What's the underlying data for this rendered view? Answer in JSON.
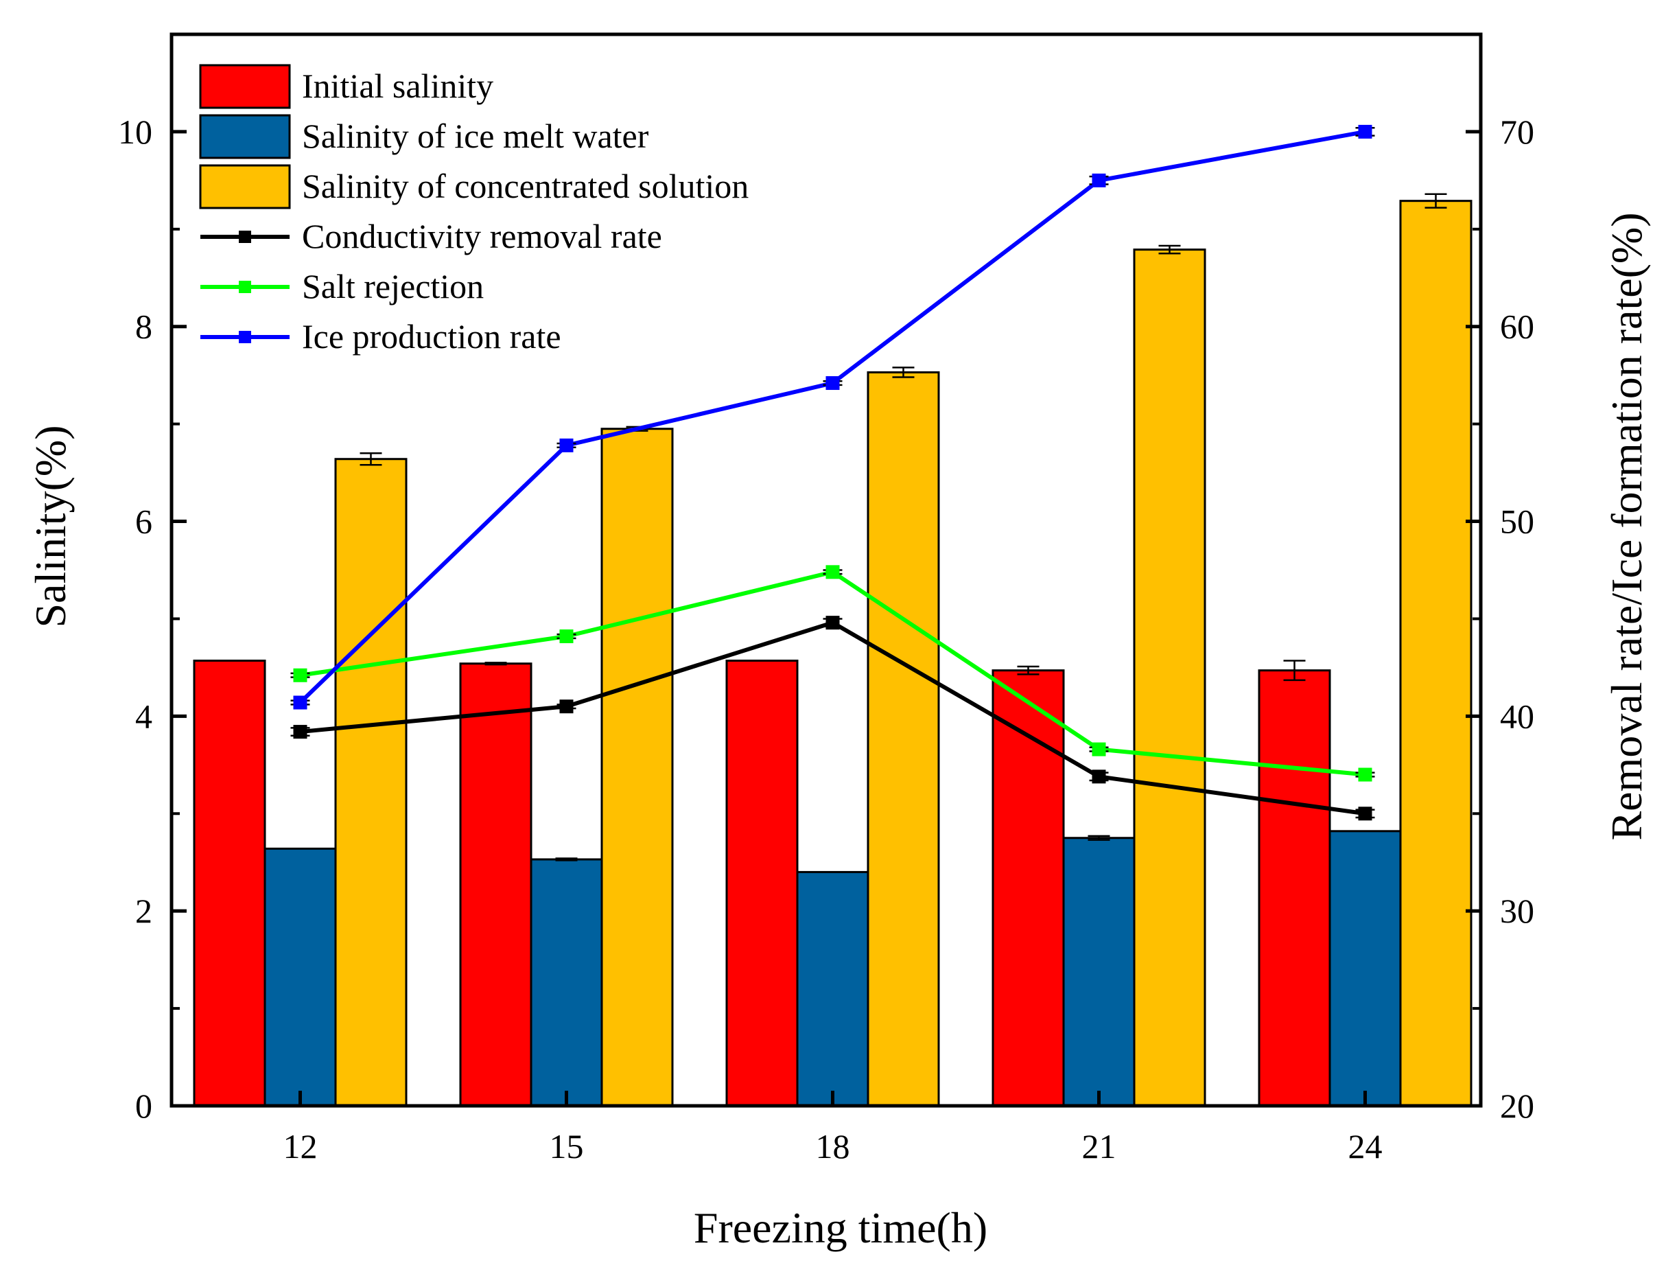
{
  "chart_data": {
    "type": "bar",
    "xlabel": "Freezing time(h)",
    "ylabel": "Salinity(%)",
    "y2label": "Removal rate/Ice formation rate(%)",
    "categories": [
      "12",
      "15",
      "18",
      "21",
      "24"
    ],
    "ylim": [
      0,
      11
    ],
    "y_ticks": [
      0,
      2,
      4,
      6,
      8,
      10
    ],
    "y2lim": [
      20,
      75
    ],
    "y2_ticks": [
      20,
      30,
      40,
      50,
      60,
      70
    ],
    "legend_position": "top-left",
    "bar_series": [
      {
        "name": "Initial salinity",
        "color": "#ff0000",
        "values": [
          4.57,
          4.54,
          4.57,
          4.47,
          4.47
        ],
        "errors": [
          0.0,
          0.01,
          0.0,
          0.04,
          0.1
        ]
      },
      {
        "name": "Salinity of ice melt water",
        "color": "#00619e",
        "values": [
          2.64,
          2.53,
          2.4,
          2.75,
          2.82
        ],
        "errors": [
          0.0,
          0.01,
          0.0,
          0.02,
          0.0
        ]
      },
      {
        "name": "Salinity of concentrated solution",
        "color": "#ffc000",
        "values": [
          6.64,
          6.95,
          7.53,
          8.79,
          9.29
        ],
        "errors": [
          0.06,
          0.02,
          0.05,
          0.04,
          0.07
        ]
      }
    ],
    "line_series": [
      {
        "name": "Conductivity removal rate",
        "color": "#000000",
        "values": [
          39.2,
          40.5,
          44.8,
          36.9,
          35.0
        ],
        "errors": [
          0.2,
          0.1,
          0.2,
          0.2,
          0.2
        ]
      },
      {
        "name": "Salt rejection",
        "color": "#00ff00",
        "values": [
          42.1,
          44.1,
          47.4,
          38.3,
          37.0
        ],
        "errors": [
          0.1,
          0.1,
          0.1,
          0.1,
          0.1
        ]
      },
      {
        "name": "Ice production rate",
        "color": "#0000ff",
        "values": [
          40.7,
          53.9,
          57.1,
          67.5,
          70.0
        ],
        "errors": [
          0.1,
          0.1,
          0.1,
          0.2,
          0.2
        ]
      }
    ]
  }
}
